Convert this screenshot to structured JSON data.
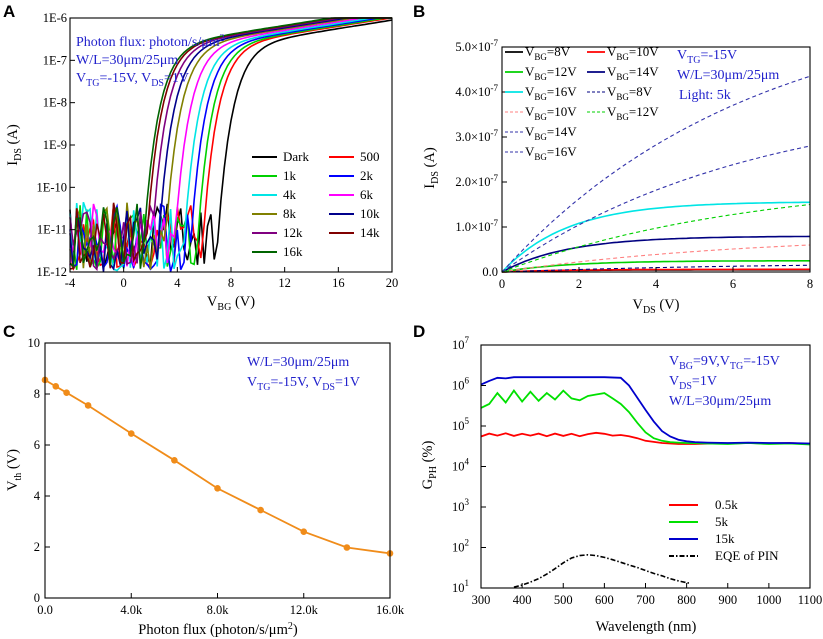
{
  "panels": {
    "A": {
      "letter": "A",
      "type": "line",
      "xlabel": "V",
      "xlabel_sub": "BG",
      "xlabel_unit": " (V)",
      "ylabel": "I",
      "ylabel_sub": "DS",
      "ylabel_unit": " (A)",
      "xlim": [
        -4,
        20
      ],
      "ylim_log10": [
        -12,
        -6
      ],
      "xticks": [
        "-4",
        "0",
        "4",
        "8",
        "12",
        "16",
        "20"
      ],
      "yticks": [
        "1E-12",
        "1E-11",
        "1E-10",
        "1E-9",
        "1E-8",
        "1E-7",
        "1E-6"
      ],
      "notes": [
        "Photon flux: photon/s/μm",
        "W/L=30μm/25μm",
        "V",
        "TG",
        "=-15V, V",
        "DS",
        "=1V"
      ],
      "note_sup": "2",
      "series": [
        {
          "name": "Dark",
          "color": "#000000",
          "threshold": 7.0
        },
        {
          "name": "500",
          "color": "#ff0000",
          "threshold": 5.9
        },
        {
          "name": "1k",
          "color": "#00d000",
          "threshold": 5.5
        },
        {
          "name": "2k",
          "color": "#0000ff",
          "threshold": 5.0
        },
        {
          "name": "4k",
          "color": "#00e5e5",
          "threshold": 4.5
        },
        {
          "name": "6k",
          "color": "#ff00ff",
          "threshold": 3.8
        },
        {
          "name": "8k",
          "color": "#808000",
          "threshold": 3.1
        },
        {
          "name": "10k",
          "color": "#00008b",
          "threshold": 2.6
        },
        {
          "name": "12k",
          "color": "#800080",
          "threshold": 2.1
        },
        {
          "name": "14k",
          "color": "#800000",
          "threshold": 1.7
        },
        {
          "name": "16k",
          "color": "#006400",
          "threshold": 1.5
        }
      ]
    },
    "B": {
      "letter": "B",
      "type": "line",
      "xlabel": "V",
      "xlabel_sub": "DS",
      "xlabel_unit": " (V)",
      "ylabel": "I",
      "ylabel_sub": "DS",
      "ylabel_unit": " (A)",
      "xlim": [
        0,
        8
      ],
      "ylim": [
        0,
        5e-07
      ],
      "xticks": [
        "0",
        "2",
        "4",
        "6",
        "8"
      ],
      "yticks": [
        "0.0",
        "1.0×10",
        "2.0×10",
        "3.0×10",
        "4.0×10",
        "5.0×10"
      ],
      "ytick_exp": "-7",
      "notes": [
        "V",
        "TG",
        "=-15V",
        "W/L=30μm/25μm",
        "Light: 5k"
      ],
      "series": [
        {
          "name": "V",
          "sub": "BG",
          "val": "=8V",
          "color": "#000000",
          "dashed": false,
          "sat": 5e-09
        },
        {
          "name": "V",
          "sub": "BG",
          "val": "=10V",
          "color": "#ff0000",
          "dashed": false,
          "sat": 6e-09
        },
        {
          "name": "V",
          "sub": "BG",
          "val": "=12V",
          "color": "#00d000",
          "dashed": false,
          "sat": 2.5e-08
        },
        {
          "name": "V",
          "sub": "BG",
          "val": "=14V",
          "color": "#000080",
          "dashed": false,
          "sat": 7.9e-08
        },
        {
          "name": "V",
          "sub": "BG",
          "val": "=16V",
          "color": "#00e5e5",
          "dashed": false,
          "sat": 1.55e-07
        },
        {
          "name": "V",
          "sub": "BG",
          "val": "=8V",
          "color": "#000080",
          "dashed": true,
          "sat": 1.5e-08
        },
        {
          "name": "V",
          "sub": "BG",
          "val": "=10V",
          "color": "#ff8080",
          "dashed": true,
          "sat": 6e-08
        },
        {
          "name": "V",
          "sub": "BG",
          "val": "=12V",
          "color": "#00d000",
          "dashed": true,
          "sat": 1.5e-07
        },
        {
          "name": "V",
          "sub": "BG",
          "val": "=14V",
          "color": "#3333aa",
          "dashed": true,
          "sat": 2.8e-07
        },
        {
          "name": "V",
          "sub": "BG",
          "val": "=16V",
          "color": "#3333aa",
          "dashed": true,
          "sat": 4.35e-07
        }
      ]
    },
    "C": {
      "letter": "C",
      "type": "line",
      "xlabel": "Photon flux (photon/s/μm",
      "xlabel_sup": "2",
      "xlabel_end": ")",
      "ylabel": "V",
      "ylabel_sub": "th",
      "ylabel_unit": " (V)",
      "xlim": [
        0,
        16000
      ],
      "ylim": [
        0,
        10
      ],
      "xticks": [
        "0.0",
        "4.0k",
        "8.0k",
        "12.0k",
        "16.0k"
      ],
      "yticks": [
        "0",
        "2",
        "4",
        "6",
        "8",
        "10"
      ],
      "notes": [
        "W/L=30μm/25μm",
        "V",
        "TG",
        "=-15V, V",
        "DS",
        "=1V"
      ],
      "color": "#f08c1a",
      "x": [
        0,
        500,
        1000,
        2000,
        4000,
        6000,
        8000,
        10000,
        12000,
        14000,
        16000
      ],
      "y": [
        8.55,
        8.3,
        8.05,
        7.55,
        6.45,
        5.4,
        4.3,
        3.45,
        2.6,
        1.98,
        1.75
      ]
    },
    "D": {
      "letter": "D",
      "type": "line",
      "xlabel": "Wavelength (nm)",
      "ylabel": "G",
      "ylabel_sub": "PH",
      "ylabel_unit": " (%)",
      "xlim": [
        300,
        1100
      ],
      "ylim_log10": [
        1,
        7
      ],
      "xticks": [
        "300",
        "400",
        "500",
        "600",
        "700",
        "800",
        "900",
        "1000",
        "1100"
      ],
      "yticks_base": "10",
      "yticks_exp": [
        "1",
        "2",
        "3",
        "4",
        "5",
        "6",
        "7"
      ],
      "notes": [
        "V",
        "BG",
        "=9V,V",
        "TG",
        "=-15V",
        "V",
        "DS",
        "=1V",
        "W/L=30μm/25μm"
      ],
      "series": [
        {
          "name": "0.5k",
          "color": "#ff0000"
        },
        {
          "name": "5k",
          "color": "#00e000"
        },
        {
          "name": "15k",
          "color": "#0000cc"
        },
        {
          "name": "EQE of PIN",
          "color": "#000000"
        }
      ],
      "curves": {
        "0.5k": {
          "x": [
            300,
            320,
            340,
            360,
            380,
            400,
            420,
            440,
            460,
            480,
            500,
            520,
            540,
            560,
            580,
            600,
            620,
            640,
            660,
            680,
            700,
            740,
            780,
            820,
            860,
            900,
            950,
            1000,
            1050,
            1100
          ],
          "y": [
            55000.0,
            65000.0,
            58000.0,
            66000.0,
            57000.0,
            64000.0,
            58000.0,
            65000.0,
            56000.0,
            65000.0,
            57000.0,
            64000.0,
            56000.0,
            63000.0,
            68000.0,
            64000.0,
            58000.0,
            60000.0,
            56000.0,
            50000.0,
            43000.0,
            38000.0,
            36000.0,
            36000.0,
            37000.0,
            37000.0,
            38000.0,
            37000.0,
            38000.0,
            36000.0
          ]
        },
        "5k": {
          "x": [
            300,
            320,
            340,
            360,
            380,
            400,
            420,
            440,
            460,
            480,
            500,
            520,
            540,
            560,
            580,
            600,
            620,
            640,
            660,
            680,
            700,
            720,
            740,
            760,
            780,
            800,
            850,
            900,
            950,
            1000,
            1050,
            1100
          ],
          "y": [
            280000.0,
            350000.0,
            650000.0,
            380000.0,
            750000.0,
            400000.0,
            700000.0,
            420000.0,
            650000.0,
            450000.0,
            750000.0,
            480000.0,
            430000.0,
            550000.0,
            600000.0,
            650000.0,
            480000.0,
            350000.0,
            220000.0,
            120000.0,
            70000.0,
            50000.0,
            43000.0,
            40000.0,
            39000.0,
            38000.0,
            37000.0,
            36000.0,
            38000.0,
            36000.0,
            37000.0,
            35000.0
          ]
        },
        "15k": {
          "x": [
            300,
            320,
            340,
            360,
            380,
            400,
            450,
            500,
            550,
            600,
            640,
            660,
            680,
            700,
            720,
            740,
            760,
            780,
            800,
            820,
            850,
            900,
            950,
            1000,
            1050,
            1100
          ],
          "y": [
            1050000.0,
            1300000.0,
            1550000.0,
            1500000.0,
            1600000.0,
            1600000.0,
            1600000.0,
            1600000.0,
            1600000.0,
            1600000.0,
            1550000.0,
            1000000.0,
            500000.0,
            250000.0,
            130000.0,
            75000.0,
            55000.0,
            46000.0,
            42000.0,
            40000.0,
            39000.0,
            38000.0,
            39000.0,
            38000.0,
            38000.0,
            37000.0
          ]
        },
        "EQE of PIN": {
          "x": [
            380,
            400,
            420,
            440,
            460,
            480,
            500,
            520,
            540,
            560,
            580,
            600,
            620,
            640,
            660,
            680,
            700,
            720,
            740,
            760,
            780,
            800,
            810
          ],
          "y": [
            10.5,
            11.8,
            14,
            17,
            22,
            30,
            42,
            55,
            63,
            66,
            63,
            57,
            50,
            43,
            37,
            32,
            27,
            23,
            20,
            17,
            15,
            13.5,
            13
          ]
        }
      }
    }
  }
}
